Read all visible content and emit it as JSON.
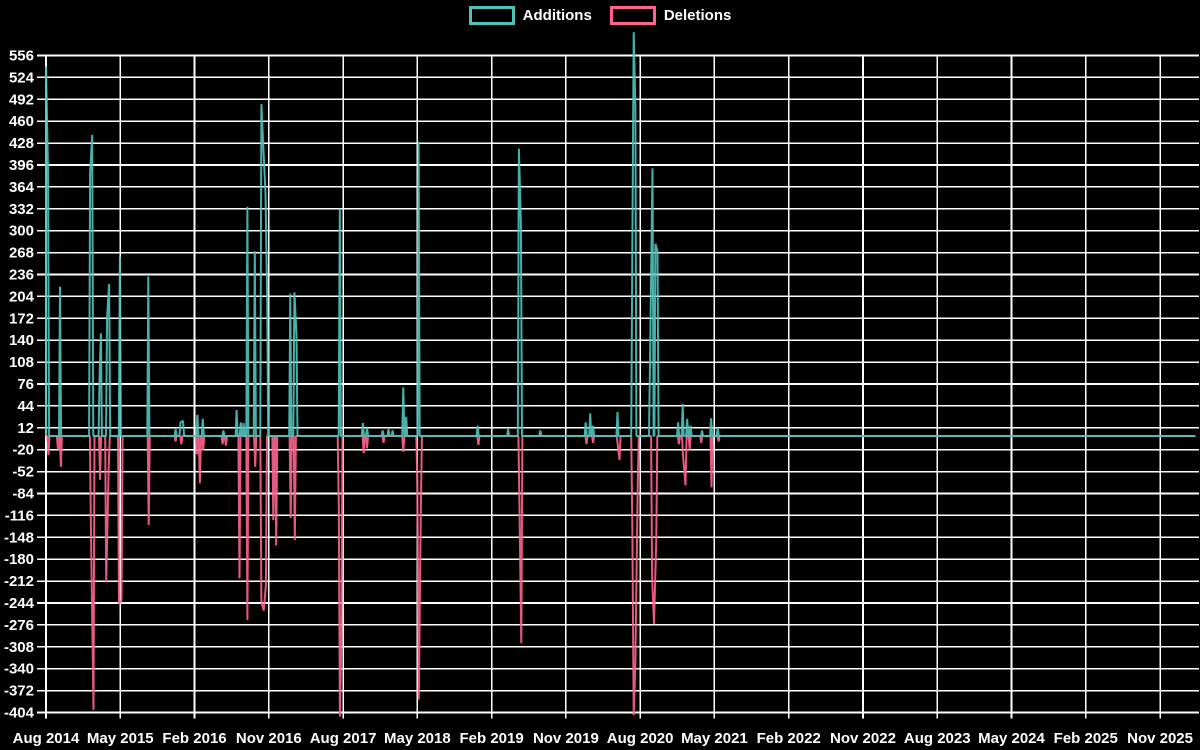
{
  "legend": {
    "additions_label": "Additions",
    "deletions_label": "Deletions"
  },
  "colors": {
    "background": "#000000",
    "grid": "#ffffff",
    "text": "#ffffff",
    "additions": "#4fc3ba",
    "deletions": "#ff6490",
    "baseline_blend": "#7fadb2"
  },
  "chart_data": {
    "type": "line",
    "title": "",
    "xlabel": "",
    "ylabel": "",
    "grid": true,
    "legend_position": "top-center",
    "x_unit": "months since Aug 2014; one x tick every 9 months",
    "x_range_months": [
      0,
      139.3
    ],
    "ylim": [
      -404,
      556
    ],
    "y_step": 32,
    "y_ticks": [
      556,
      524,
      492,
      460,
      428,
      396,
      364,
      332,
      300,
      268,
      236,
      204,
      172,
      140,
      108,
      76,
      44,
      12,
      -20,
      -52,
      -84,
      -116,
      -148,
      -180,
      -212,
      -244,
      -276,
      -308,
      -340,
      -372,
      -404
    ],
    "x_tick_labels": [
      "Aug 2014",
      "May 2015",
      "Feb 2016",
      "Nov 2016",
      "Aug 2017",
      "May 2018",
      "Feb 2019",
      "Nov 2019",
      "Aug 2020",
      "May 2021",
      "Feb 2022",
      "Nov 2022",
      "Aug 2023",
      "May 2024",
      "Feb 2025",
      "Nov 2025"
    ],
    "series": [
      {
        "name": "Additions",
        "color": "#4fc3ba",
        "points": [
          [
            0.0,
            540
          ],
          [
            0.24,
            390
          ],
          [
            1.7,
            218
          ],
          [
            5.35,
            385
          ],
          [
            5.6,
            440
          ],
          [
            6.5,
            90
          ],
          [
            6.65,
            150
          ],
          [
            7.4,
            174
          ],
          [
            7.65,
            222
          ],
          [
            8.95,
            262
          ],
          [
            12.4,
            233
          ],
          [
            15.7,
            10
          ],
          [
            16.3,
            20
          ],
          [
            16.6,
            22
          ],
          [
            18.35,
            31
          ],
          [
            19.0,
            25
          ],
          [
            21.5,
            8
          ],
          [
            23.1,
            38
          ],
          [
            23.6,
            20
          ],
          [
            23.95,
            19
          ],
          [
            24.4,
            335
          ],
          [
            25.3,
            270
          ],
          [
            26.1,
            485
          ],
          [
            26.32,
            425
          ],
          [
            26.6,
            355
          ],
          [
            26.8,
            200
          ],
          [
            29.6,
            208
          ],
          [
            30.1,
            210
          ],
          [
            30.35,
            148
          ],
          [
            35.6,
            332
          ],
          [
            38.4,
            19
          ],
          [
            38.9,
            12
          ],
          [
            40.8,
            8
          ],
          [
            41.5,
            10
          ],
          [
            42.0,
            8
          ],
          [
            43.3,
            71
          ],
          [
            43.65,
            28
          ],
          [
            45.15,
            430
          ],
          [
            52.3,
            15
          ],
          [
            56.0,
            10
          ],
          [
            57.3,
            420
          ],
          [
            57.55,
            310
          ],
          [
            59.9,
            8
          ],
          [
            65.4,
            20
          ],
          [
            65.95,
            33
          ],
          [
            66.3,
            15
          ],
          [
            69.25,
            35
          ],
          [
            71.05,
            265
          ],
          [
            71.22,
            590
          ],
          [
            71.42,
            480
          ],
          [
            73.2,
            118
          ],
          [
            73.5,
            391
          ],
          [
            73.85,
            281
          ],
          [
            74.1,
            270
          ],
          [
            76.6,
            20
          ],
          [
            77.15,
            47
          ],
          [
            77.7,
            25
          ],
          [
            78.1,
            15
          ],
          [
            79.5,
            8
          ],
          [
            80.6,
            26
          ],
          [
            81.4,
            12
          ]
        ]
      },
      {
        "name": "Deletions",
        "color": "#ff6490",
        "points": [
          [
            0.3,
            -28
          ],
          [
            1.45,
            -20
          ],
          [
            1.8,
            -45
          ],
          [
            5.45,
            -143
          ],
          [
            5.75,
            -400
          ],
          [
            6.55,
            -64
          ],
          [
            7.3,
            -214
          ],
          [
            7.6,
            -47
          ],
          [
            8.85,
            -245
          ],
          [
            9.15,
            -240
          ],
          [
            12.45,
            -130
          ],
          [
            15.7,
            -8
          ],
          [
            16.4,
            -12
          ],
          [
            18.3,
            -27
          ],
          [
            18.65,
            -69
          ],
          [
            19.05,
            -21
          ],
          [
            21.4,
            -12
          ],
          [
            21.8,
            -14
          ],
          [
            23.45,
            -208
          ],
          [
            24.4,
            -269
          ],
          [
            25.35,
            -45
          ],
          [
            26.1,
            -243
          ],
          [
            26.38,
            -255
          ],
          [
            26.65,
            -218
          ],
          [
            27.55,
            -123
          ],
          [
            27.9,
            -160
          ],
          [
            29.65,
            -120
          ],
          [
            30.15,
            -152
          ],
          [
            35.48,
            -100
          ],
          [
            35.62,
            -410
          ],
          [
            35.8,
            -295
          ],
          [
            38.5,
            -25
          ],
          [
            38.9,
            -18
          ],
          [
            40.9,
            -10
          ],
          [
            43.3,
            -23
          ],
          [
            45.0,
            -64
          ],
          [
            45.18,
            -385
          ],
          [
            45.42,
            -110
          ],
          [
            52.4,
            -13
          ],
          [
            57.38,
            -105
          ],
          [
            57.6,
            -303
          ],
          [
            65.5,
            -12
          ],
          [
            66.3,
            -10
          ],
          [
            69.3,
            -15
          ],
          [
            69.5,
            -35
          ],
          [
            71.05,
            -126
          ],
          [
            71.22,
            -408
          ],
          [
            71.42,
            -330
          ],
          [
            71.7,
            -75
          ],
          [
            73.45,
            -206
          ],
          [
            73.68,
            -275
          ],
          [
            73.95,
            -150
          ],
          [
            76.7,
            -12
          ],
          [
            77.2,
            -30
          ],
          [
            77.5,
            -72
          ],
          [
            78.0,
            -20
          ],
          [
            79.4,
            -10
          ],
          [
            80.65,
            -75
          ],
          [
            81.5,
            -8
          ]
        ]
      }
    ]
  }
}
